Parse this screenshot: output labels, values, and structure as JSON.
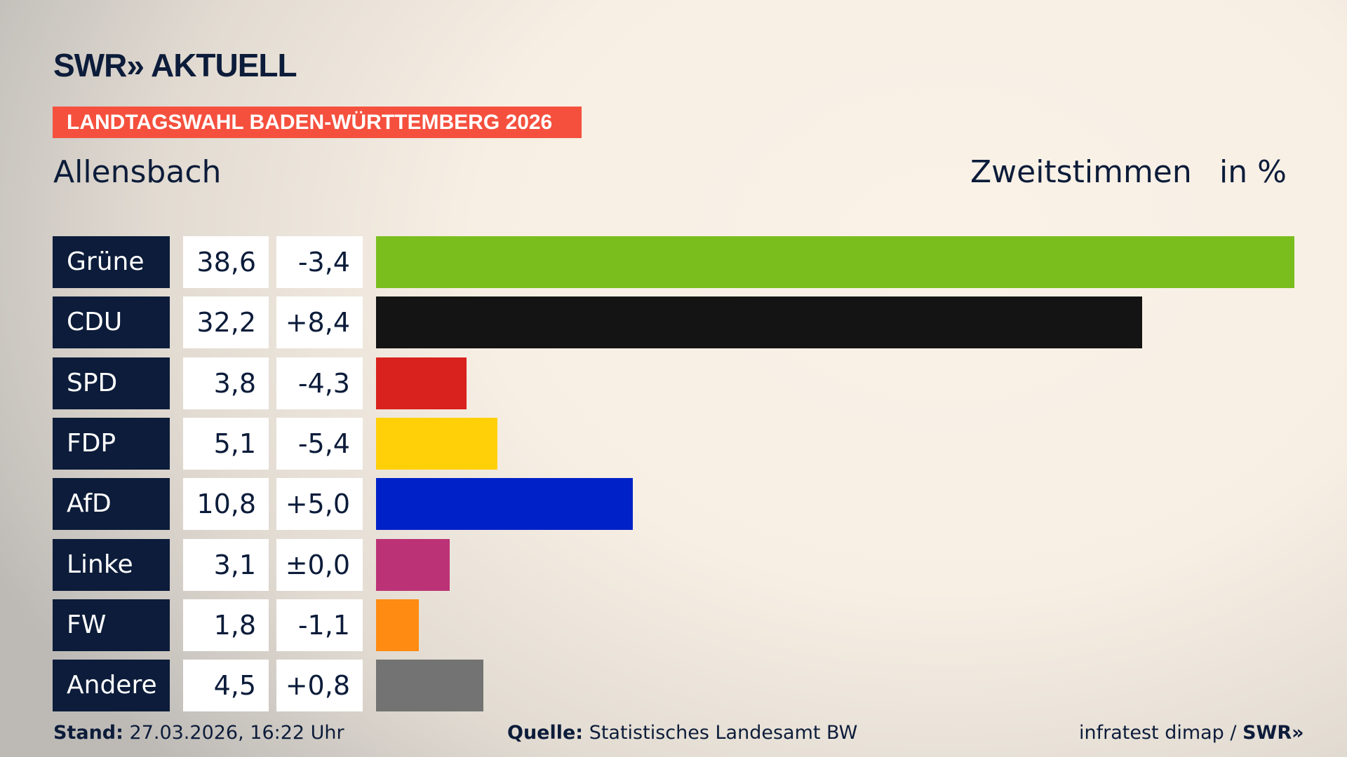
{
  "header": {
    "logo": "SWR» AKTUELL",
    "banner": "LANDTAGSWAHL BADEN-WÜRTTEMBERG 2026",
    "region": "Allensbach",
    "measure": "Zweitstimmen",
    "unit": "in %"
  },
  "chart_data": {
    "type": "bar",
    "orientation": "horizontal",
    "categories": [
      "Grüne",
      "CDU",
      "SPD",
      "FDP",
      "AfD",
      "Linke",
      "FW",
      "Andere"
    ],
    "values": [
      38.6,
      32.2,
      3.8,
      5.1,
      10.8,
      3.1,
      1.8,
      4.5
    ],
    "value_labels": [
      "38,6",
      "32,2",
      "3,8",
      "5,1",
      "10,8",
      "3,1",
      "1,8",
      "4,5"
    ],
    "diff_labels": [
      "-3,4",
      "+8,4",
      "-4,3",
      "-5,4",
      "+5,0",
      "±0,0",
      "-1,1",
      "+0,8"
    ],
    "colors": [
      "#7abe1e",
      "#141414",
      "#d9211d",
      "#ffd008",
      "#0021c8",
      "#bc3277",
      "#ff8b13",
      "#737373"
    ],
    "xlim": [
      0,
      38.6
    ]
  },
  "footer": {
    "stand_label": "Stand:",
    "stand_value": "27.03.2026, 16:22 Uhr",
    "source_label": "Quelle:",
    "source_value": "Statistisches Landesamt BW",
    "credit": "infratest dimap / ",
    "credit_logo": "SWR»"
  }
}
